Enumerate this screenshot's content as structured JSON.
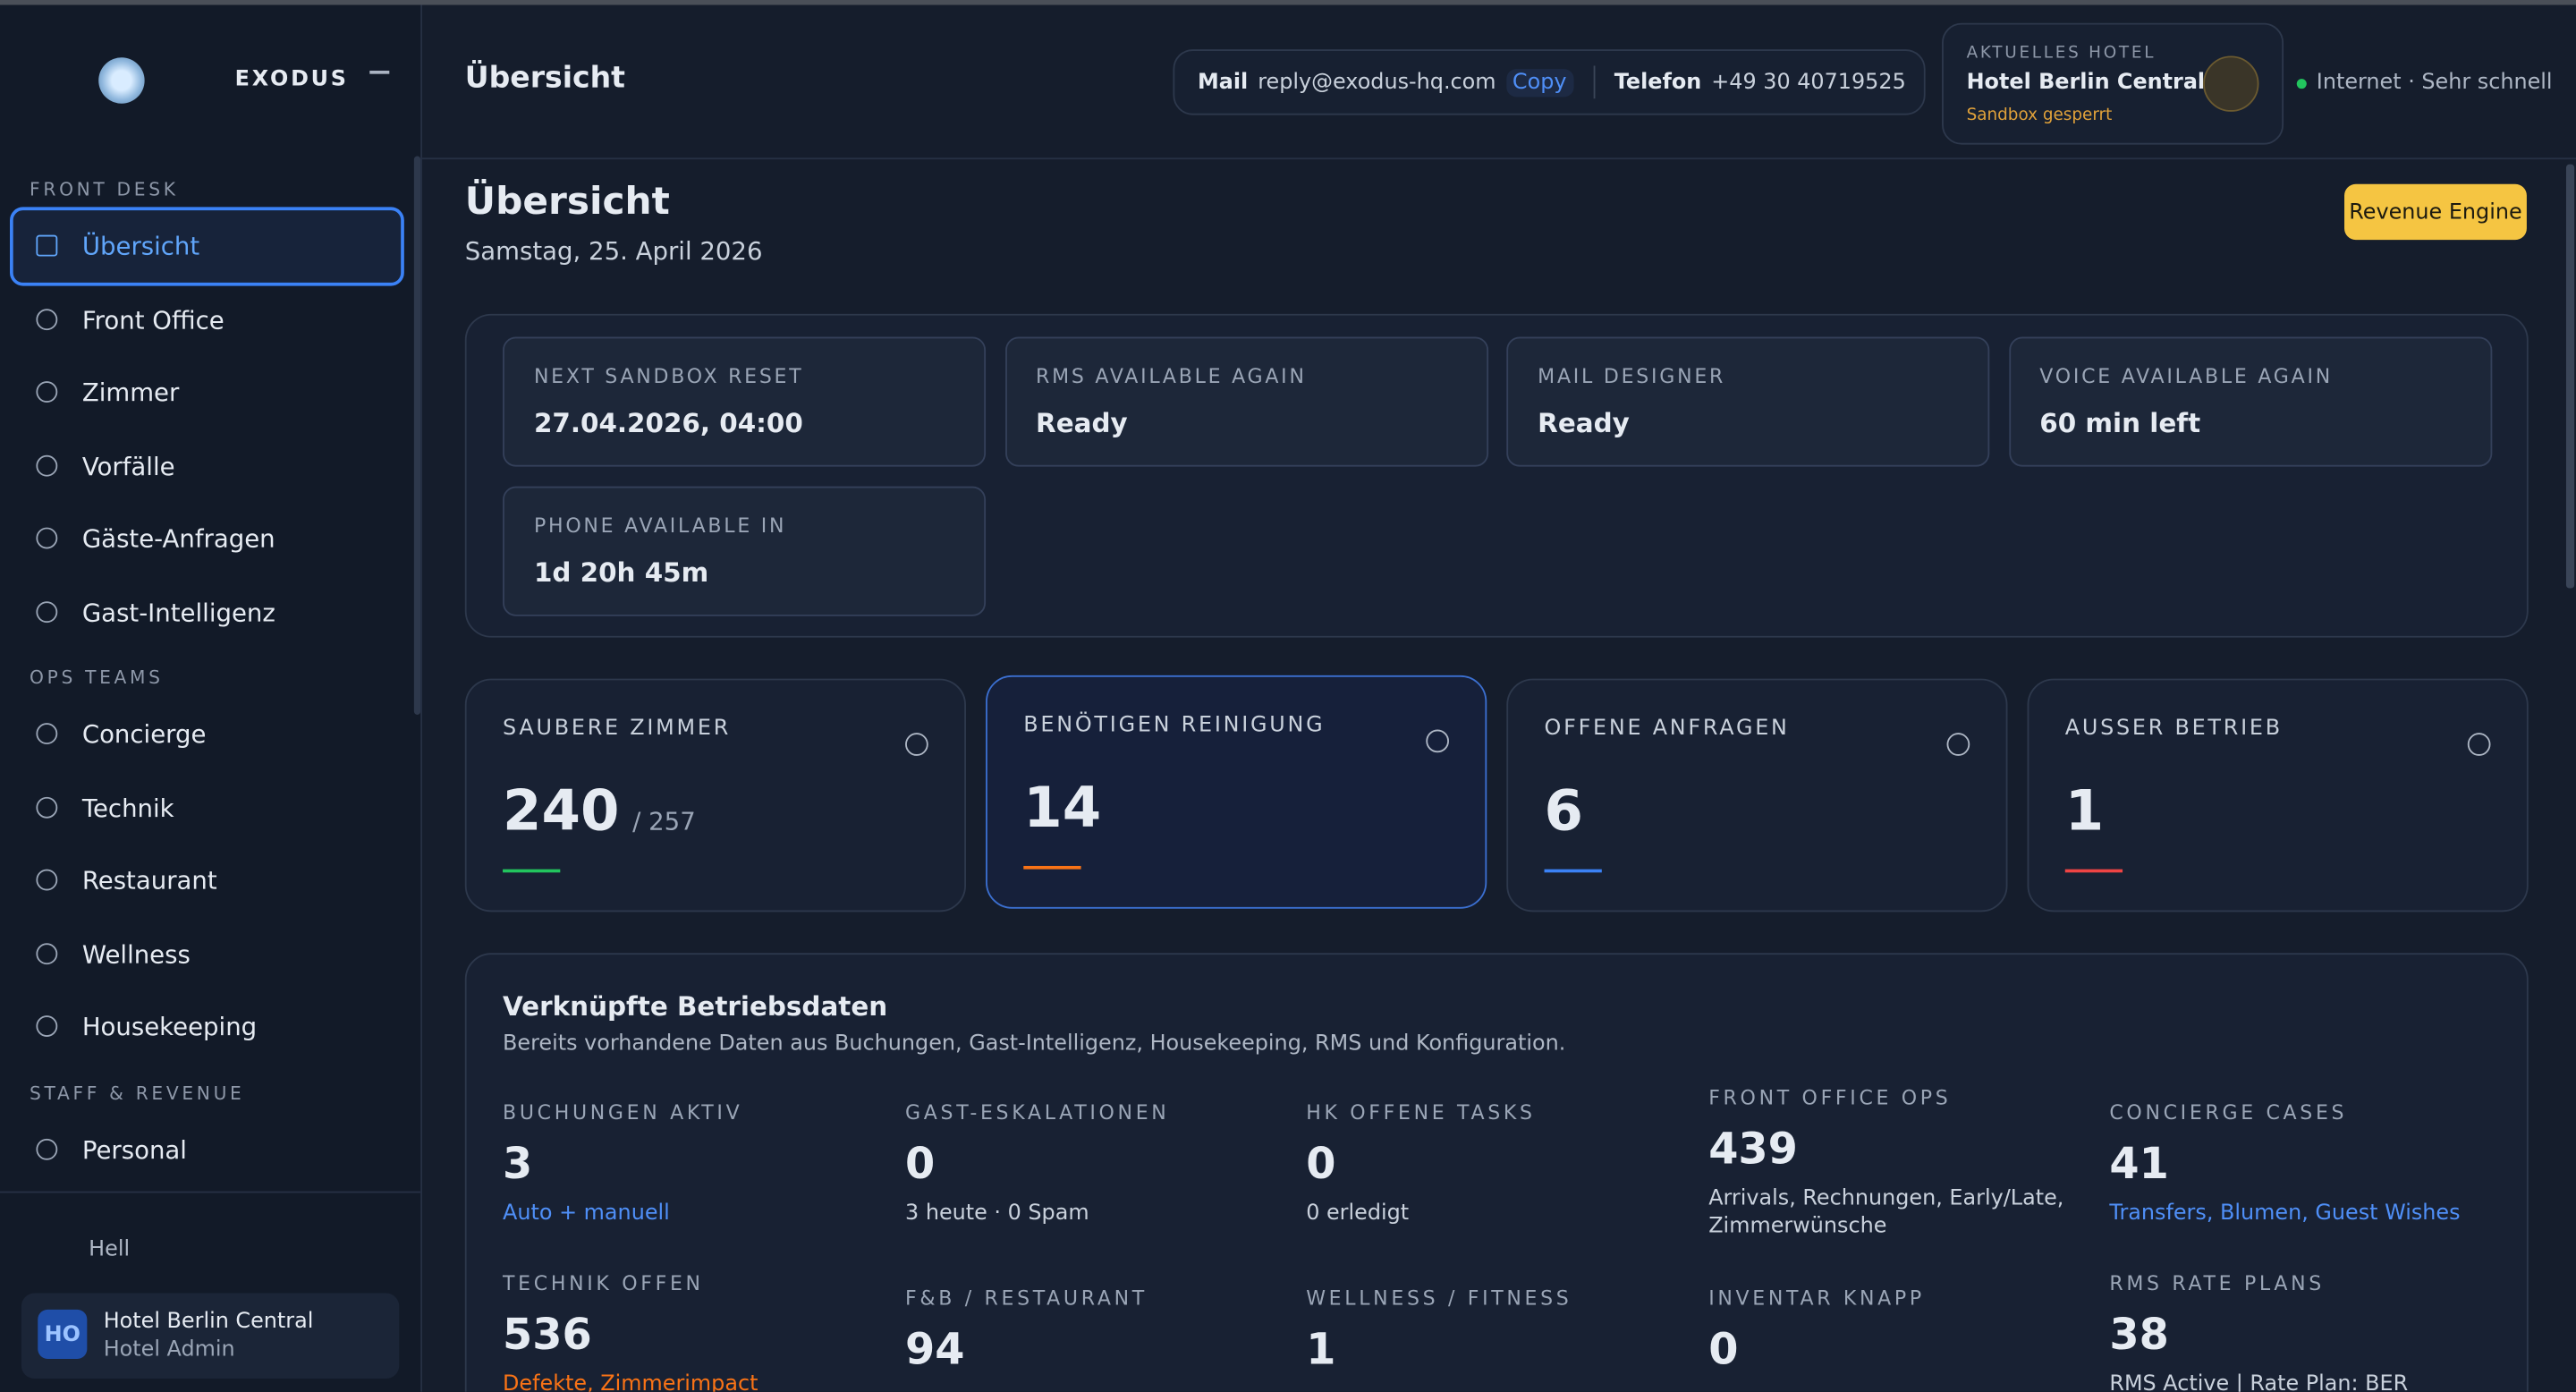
{
  "sidebar": {
    "brand": "EXODUS",
    "sections": [
      {
        "title": "FRONT DESK",
        "items": [
          "Übersicht",
          "Front Office",
          "Zimmer",
          "Vorfälle",
          "Gäste-Anfragen",
          "Gast-Intelligenz"
        ]
      },
      {
        "title": "OPS TEAMS",
        "items": [
          "Concierge",
          "Technik",
          "Restaurant",
          "Wellness",
          "Housekeeping"
        ]
      },
      {
        "title": "STAFF & REVENUE",
        "items": [
          "Personal"
        ]
      }
    ],
    "theme": "Hell",
    "user": {
      "initials": "HO",
      "name": "Hotel Berlin Central",
      "role": "Hotel Admin"
    }
  },
  "topbar": {
    "title": "Übersicht",
    "mail_label": "Mail",
    "email": "reply@exodus-hq.com",
    "copy": "Copy",
    "phone_label": "Telefon",
    "phone": "+49 30 40719525",
    "hotel": {
      "label": "AKTUELLES HOTEL",
      "name": "Hotel Berlin Central",
      "status": "Sandbox gesperrt"
    },
    "connection": "Internet · Sehr schnell"
  },
  "page": {
    "heading": "Übersicht",
    "date": "Samstag, 25. April 2026",
    "button": "Revenue Engine"
  },
  "status_cards": [
    {
      "label": "NEXT SANDBOX RESET",
      "value": "27.04.2026, 04:00"
    },
    {
      "label": "RMS AVAILABLE AGAIN",
      "value": "Ready"
    },
    {
      "label": "MAIL DESIGNER",
      "value": "Ready"
    },
    {
      "label": "VOICE AVAILABLE AGAIN",
      "value": "60 min left"
    },
    {
      "label": "PHONE AVAILABLE IN",
      "value": "1d 20h 45m"
    }
  ],
  "kpis": [
    {
      "label": "SAUBERE ZIMMER",
      "value": "240",
      "total": "/ 257",
      "color": "#22c55e"
    },
    {
      "label": "BENÖTIGEN REINIGUNG",
      "value": "14",
      "color": "#f97316"
    },
    {
      "label": "OFFENE ANFRAGEN",
      "value": "6",
      "color": "#3b82f6"
    },
    {
      "label": "AUSSER BETRIEB",
      "value": "1",
      "color": "#ef4444"
    }
  ],
  "linked": {
    "title": "Verknüpfte Betriebsdaten",
    "subtitle": "Bereits vorhandene Daten aus Buchungen, Gast-Intelligenz, Housekeeping, RMS und Konfiguration.",
    "metrics": [
      {
        "label": "BUCHUNGEN AKTIV",
        "value": "3",
        "note": "Auto + manuell",
        "color": "#4f8ff7"
      },
      {
        "label": "GAST-ESKALATIONEN",
        "value": "0",
        "note": "3 heute · 0 Spam",
        "color": "#c9d1dc"
      },
      {
        "label": "HK OFFENE TASKS",
        "value": "0",
        "note": "0 erledigt",
        "color": "#c9d1dc"
      },
      {
        "label": "FRONT OFFICE OPS",
        "value": "439",
        "note": "Arrivals, Rechnungen, Early/Late, Zimmerwünsche",
        "color": "#c9d1dc"
      },
      {
        "label": "CONCIERGE CASES",
        "value": "41",
        "note": "Transfers, Blumen, Guest Wishes",
        "color": "#4f8ff7"
      },
      {
        "label": "TECHNIK OFFEN",
        "value": "536",
        "note": "Defekte, Zimmerimpact",
        "color": "#f97316"
      },
      {
        "label": "F&B / RESTAURANT",
        "value": "94"
      },
      {
        "label": "WELLNESS / FITNESS",
        "value": "1"
      },
      {
        "label": "INVENTAR KNAPP",
        "value": "0"
      },
      {
        "label": "RMS RATE PLANS",
        "value": "38",
        "note": "RMS Active | Rate Plan: BER APALEO",
        "color": "#c9d1dc"
      }
    ]
  }
}
